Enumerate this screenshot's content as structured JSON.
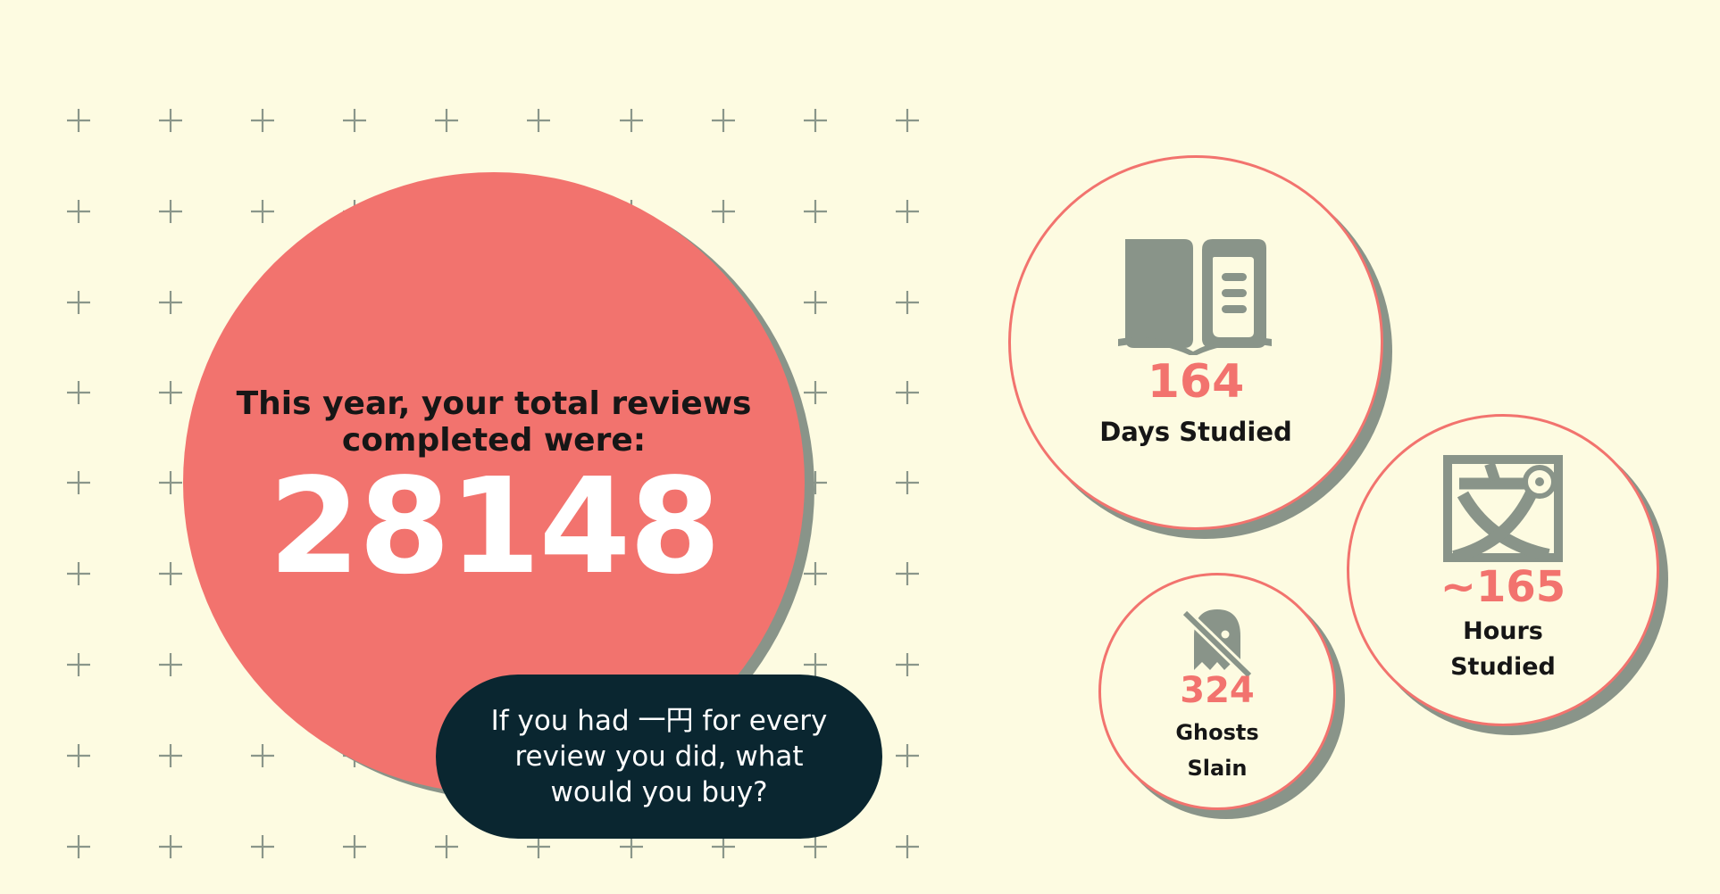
{
  "colors": {
    "background": "#fdfbe1",
    "accent": "#f2736e",
    "shadow": "#899489",
    "dark": "#0a2630",
    "text": "#161616"
  },
  "main": {
    "lead": "This year, your total reviews completed were:",
    "total_reviews": "28148"
  },
  "callout": {
    "text": "If you had 一円 for every review you did, what would you buy?"
  },
  "stats": {
    "days": {
      "icon": "book-icon",
      "value": "164",
      "label": "Days Studied"
    },
    "hours": {
      "icon": "kanji-icon",
      "value": "~165",
      "label": "Hours Studied"
    },
    "ghosts": {
      "icon": "ghost-slash-icon",
      "value": "324",
      "label": "Ghosts Slain"
    }
  }
}
